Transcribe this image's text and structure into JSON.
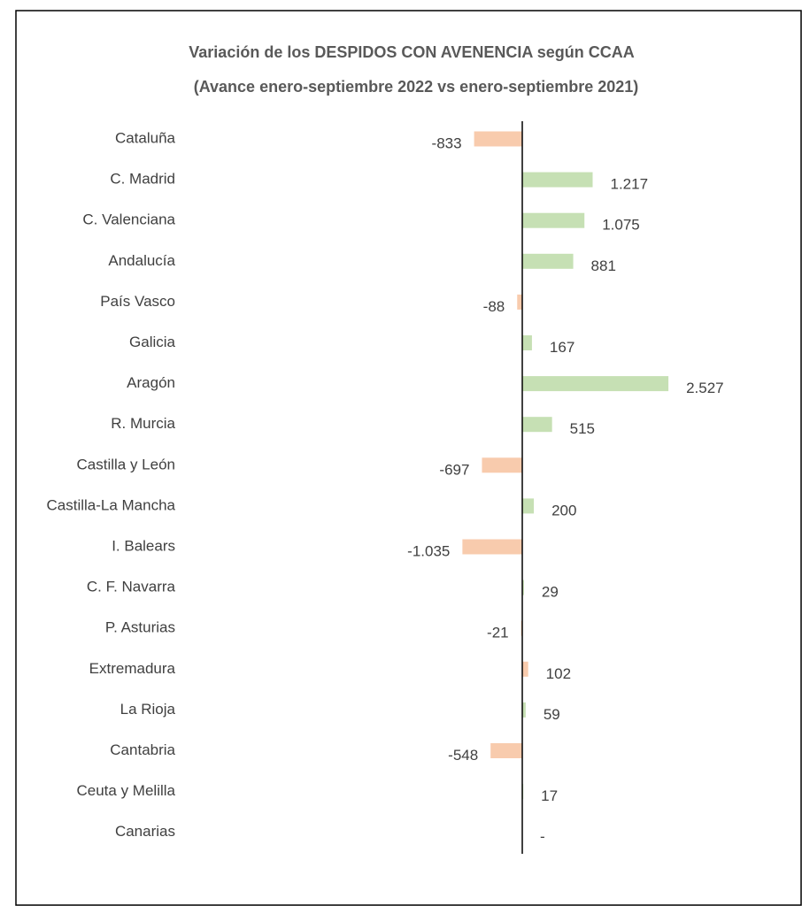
{
  "chart_data": {
    "type": "bar",
    "orientation": "horizontal",
    "title": "Variación de los DESPIDOS CON AVENENCIA según CCAA",
    "subtitle": "(Avance enero-septiembre 2022  vs enero-septiembre 2021)",
    "categories": [
      "Cataluña",
      "C. Madrid",
      "C. Valenciana",
      "Andalucía",
      "País Vasco",
      "Galicia",
      "Aragón",
      "R. Murcia",
      "Castilla y León",
      "Castilla-La Mancha",
      "I. Balears",
      "C. F. Navarra",
      "P. Asturias",
      "Extremadura",
      "La Rioja",
      "Cantabria",
      "Ceuta y Melilla",
      "Canarias"
    ],
    "values": [
      -833,
      1217,
      1075,
      881,
      -88,
      167,
      2527,
      515,
      -697,
      200,
      -1035,
      29,
      -21,
      102,
      59,
      -548,
      17,
      0
    ],
    "value_labels": [
      "-833",
      "1.217",
      "1.075",
      "881",
      "-88",
      "167",
      "2.527",
      "515",
      "-697",
      "200",
      "-1.035",
      "29",
      "-21",
      "102",
      "59",
      "-548",
      "17",
      "-"
    ],
    "colors": [
      "#f8cbad",
      "#c6e0b4",
      "#c6e0b4",
      "#c6e0b4",
      "#f8cbad",
      "#c6e0b4",
      "#c6e0b4",
      "#c6e0b4",
      "#f8cbad",
      "#c6e0b4",
      "#f8cbad",
      "#c6e0b4",
      "#f8cbad",
      "#f8cbad",
      "#c6e0b4",
      "#f8cbad",
      "#c6e0b4",
      "#c6e0b4"
    ],
    "xlim": [
      -3000,
      3000
    ]
  }
}
